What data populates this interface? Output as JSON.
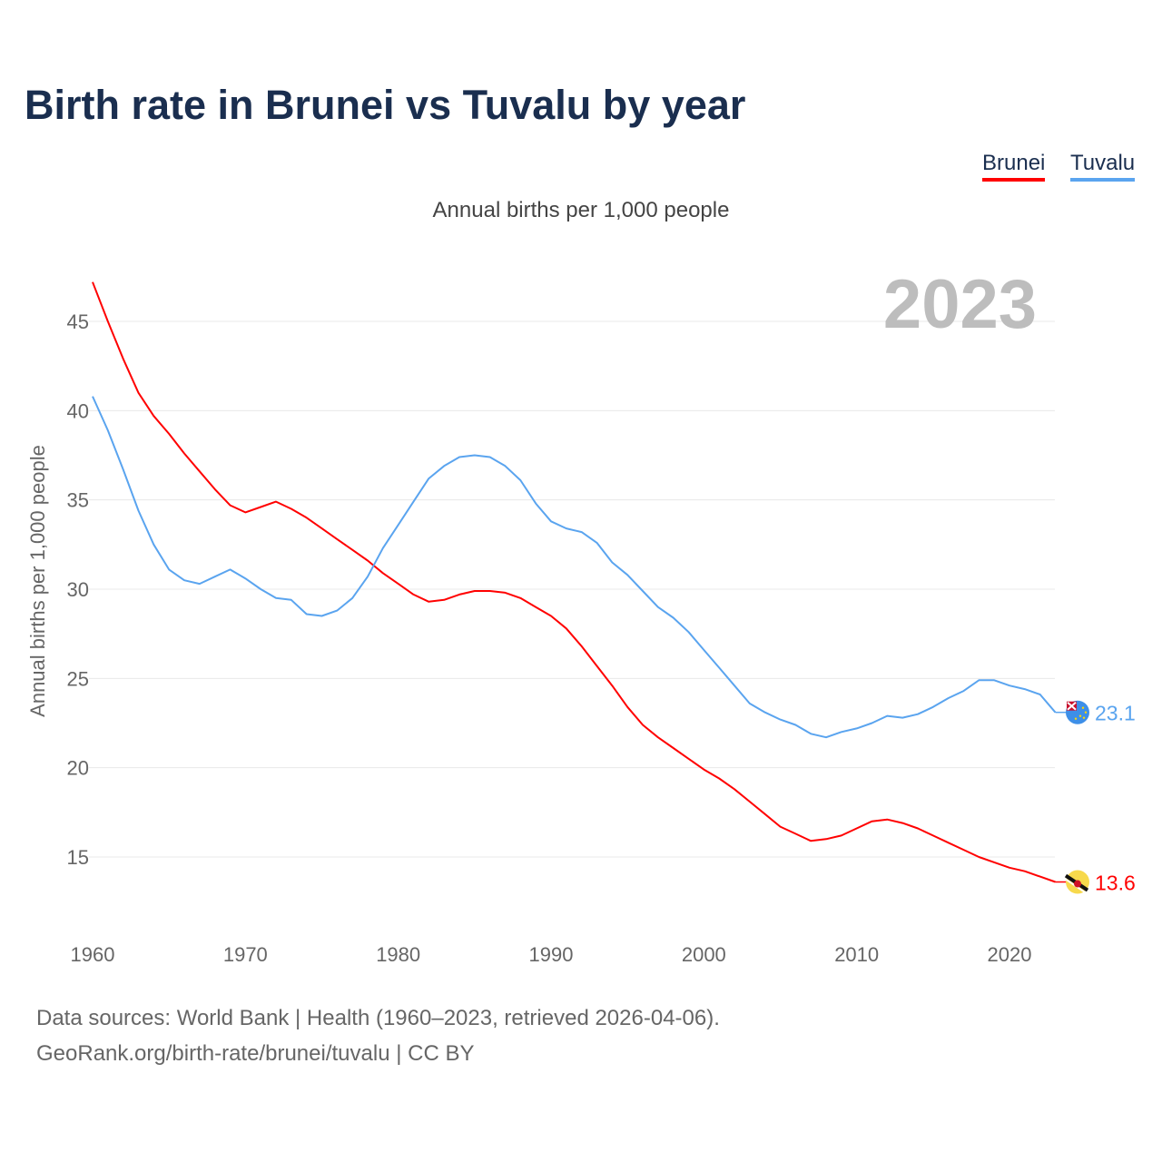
{
  "title": "Birth rate in Brunei vs Tuvalu by year",
  "legend": {
    "brunei": "Brunei",
    "tuvalu": "Tuvalu"
  },
  "subtitle": "Annual births per 1,000 people",
  "year_label": "2023",
  "sources": {
    "line1": "Data sources: World Bank | Health (1960–2023, retrieved 2026-04-06).",
    "line2": "GeoRank.org/birth-rate/brunei/tuvalu | CC BY"
  },
  "chart_data": {
    "type": "line",
    "title": "Birth rate in Brunei vs Tuvalu by year",
    "xlabel": "",
    "ylabel": "Annual births per 1,000 people",
    "xlim": [
      1960,
      2023
    ],
    "ylim": [
      11,
      48
    ],
    "xticks": [
      1960,
      1970,
      1980,
      1990,
      2000,
      2010,
      2020
    ],
    "yticks": [
      15,
      20,
      25,
      30,
      35,
      40,
      45
    ],
    "grid": true,
    "legend_position": "top-right",
    "x_start": 1960,
    "series": [
      {
        "name": "Brunei",
        "color": "#ff0000",
        "end_label": "13.6",
        "values": [
          47.2,
          45.0,
          42.9,
          41.0,
          39.7,
          38.7,
          37.6,
          36.6,
          35.6,
          34.7,
          34.3,
          34.6,
          34.9,
          34.5,
          34.0,
          33.4,
          32.8,
          32.2,
          31.6,
          30.9,
          30.3,
          29.7,
          29.3,
          29.4,
          29.7,
          29.9,
          29.9,
          29.8,
          29.5,
          29.0,
          28.5,
          27.8,
          26.8,
          25.7,
          24.6,
          23.4,
          22.4,
          21.7,
          21.1,
          20.5,
          19.9,
          19.4,
          18.8,
          18.1,
          17.4,
          16.7,
          16.3,
          15.9,
          16.0,
          16.2,
          16.6,
          17.0,
          17.1,
          16.9,
          16.6,
          16.2,
          15.8,
          15.4,
          15.0,
          14.7,
          14.4,
          14.2,
          13.9,
          13.6
        ]
      },
      {
        "name": "Tuvalu",
        "color": "#5aa4ef",
        "end_label": "23.1",
        "values": [
          40.8,
          38.9,
          36.7,
          34.4,
          32.5,
          31.1,
          30.5,
          30.3,
          30.7,
          31.1,
          30.6,
          30.0,
          29.5,
          29.4,
          28.6,
          28.5,
          28.8,
          29.5,
          30.7,
          32.3,
          33.6,
          34.9,
          36.2,
          36.9,
          37.4,
          37.5,
          37.4,
          36.9,
          36.1,
          34.8,
          33.8,
          33.4,
          33.2,
          32.6,
          31.5,
          30.8,
          29.9,
          29.0,
          28.4,
          27.6,
          26.6,
          25.6,
          24.6,
          23.6,
          23.1,
          22.7,
          22.4,
          21.9,
          21.7,
          22.0,
          22.2,
          22.5,
          22.9,
          22.8,
          23.0,
          23.4,
          23.9,
          24.3,
          24.9,
          24.9,
          24.6,
          24.4,
          24.1,
          23.1
        ]
      }
    ]
  }
}
